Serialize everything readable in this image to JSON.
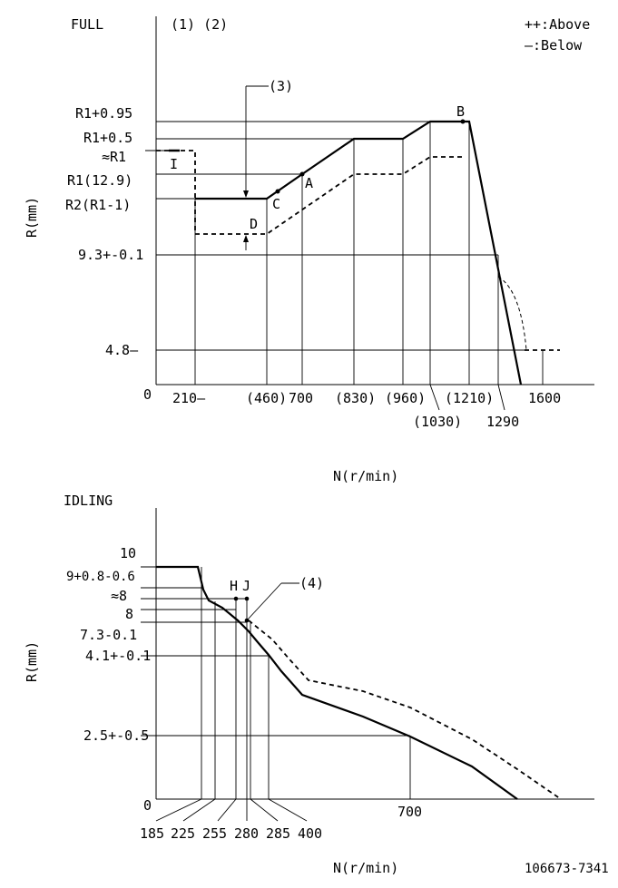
{
  "legend": {
    "above": "++:Above",
    "below": "—:Below"
  },
  "full": {
    "title": "FULL",
    "notes": "(1) (2)",
    "ylabel": "R(mm)",
    "xlabel": "N(r/min)",
    "origin": "0",
    "y_ticks": [
      "R1+0.95",
      "R1+0.5",
      "≈R1",
      "R1(12.9)",
      "R2(R1-1)",
      "9.3+-0.1",
      "4.8—"
    ],
    "x_ticks_row1": [
      "210—",
      "(460)",
      "700",
      "(830)",
      "(960)",
      "(1210)",
      "1600"
    ],
    "x_ticks_row2": [
      "(1030)",
      "1290"
    ],
    "points": {
      "A": "A",
      "B": "B",
      "C": "C",
      "D": "D",
      "I": "I"
    },
    "callout": "(3)"
  },
  "idling": {
    "title": "IDLING",
    "ylabel": "R(mm)",
    "xlabel": "N(r/min)",
    "origin": "0",
    "y_ticks": [
      "10",
      "9+0.8-0.6",
      "≈8",
      "8",
      "7.3-0.1",
      "4.1+-0.1",
      "2.5+-0.5"
    ],
    "x_tick_mid": "700",
    "x_ticks_bottom": [
      "185",
      "225",
      "255",
      "280",
      "285",
      "400"
    ],
    "points": {
      "H": "H",
      "J": "J"
    },
    "callout": "(4)"
  },
  "drawing_number": "106673-7341"
}
